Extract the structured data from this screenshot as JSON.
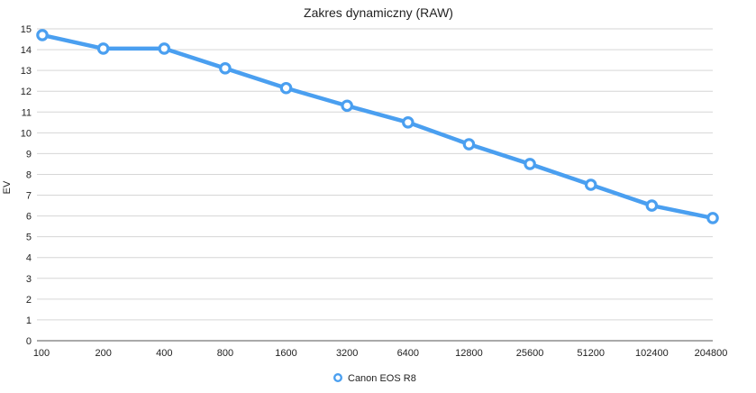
{
  "chart_data": {
    "type": "line",
    "title": "Zakres dynamiczny (RAW)",
    "xlabel": "",
    "ylabel": "EV",
    "categories": [
      "100",
      "200",
      "400",
      "800",
      "1600",
      "3200",
      "6400",
      "12800",
      "25600",
      "51200",
      "102400",
      "204800"
    ],
    "ylim": [
      0,
      15
    ],
    "yticks": [
      0,
      1,
      2,
      3,
      4,
      5,
      6,
      7,
      8,
      9,
      10,
      11,
      12,
      13,
      14,
      15
    ],
    "grid": true,
    "legend_position": "bottom",
    "series": [
      {
        "name": "Canon EOS R8",
        "color": "#4a9ff0",
        "values": [
          14.7,
          14.05,
          14.05,
          13.1,
          12.15,
          11.3,
          10.5,
          9.45,
          8.5,
          7.5,
          6.5,
          5.9
        ]
      }
    ]
  }
}
